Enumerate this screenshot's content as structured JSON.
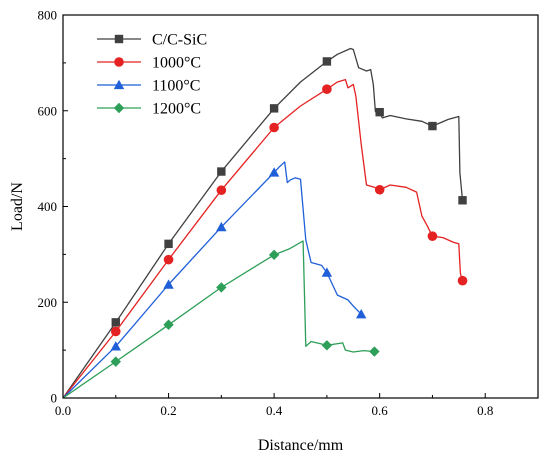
{
  "chart_data": {
    "type": "line",
    "title": "",
    "xlabel": "Distance/mm",
    "ylabel": "Load/N",
    "xlim": [
      0,
      0.9
    ],
    "ylim": [
      0,
      800
    ],
    "xticks": [
      0.0,
      0.2,
      0.4,
      0.6,
      0.8
    ],
    "xtick_labels": [
      "0.0",
      "0.2",
      "0.4",
      "0.6",
      "0.8"
    ],
    "yticks": [
      0,
      200,
      400,
      600,
      800
    ],
    "ytick_labels": [
      "0",
      "200",
      "400",
      "600",
      "800"
    ],
    "grid": false,
    "legend_position": "top-left",
    "series": [
      {
        "name": "C/C-SiC",
        "color": "#404040",
        "marker": "square",
        "points": [
          [
            0,
            0
          ],
          [
            0.1,
            158
          ],
          [
            0.2,
            322
          ],
          [
            0.3,
            473
          ],
          [
            0.4,
            605
          ],
          [
            0.45,
            660
          ],
          [
            0.5,
            703
          ],
          [
            0.52,
            718
          ],
          [
            0.545,
            730
          ],
          [
            0.55,
            728
          ],
          [
            0.56,
            690
          ],
          [
            0.575,
            683
          ],
          [
            0.583,
            686
          ],
          [
            0.588,
            655
          ],
          [
            0.592,
            598
          ],
          [
            0.6,
            597
          ],
          [
            0.605,
            585
          ],
          [
            0.62,
            590
          ],
          [
            0.65,
            583
          ],
          [
            0.68,
            578
          ],
          [
            0.7,
            568
          ],
          [
            0.73,
            582
          ],
          [
            0.75,
            588
          ],
          [
            0.752,
            470
          ],
          [
            0.757,
            413
          ]
        ],
        "markers": [
          [
            0.1,
            158
          ],
          [
            0.2,
            322
          ],
          [
            0.3,
            473
          ],
          [
            0.4,
            605
          ],
          [
            0.5,
            703
          ],
          [
            0.6,
            597
          ],
          [
            0.7,
            568
          ],
          [
            0.757,
            413
          ]
        ]
      },
      {
        "name": "1000°C",
        "color": "#e52222",
        "marker": "circle",
        "points": [
          [
            0,
            0
          ],
          [
            0.1,
            139
          ],
          [
            0.2,
            289
          ],
          [
            0.3,
            434
          ],
          [
            0.4,
            565
          ],
          [
            0.45,
            610
          ],
          [
            0.5,
            645
          ],
          [
            0.52,
            660
          ],
          [
            0.535,
            665
          ],
          [
            0.54,
            648
          ],
          [
            0.55,
            655
          ],
          [
            0.555,
            630
          ],
          [
            0.565,
            530
          ],
          [
            0.575,
            445
          ],
          [
            0.59,
            440
          ],
          [
            0.6,
            435
          ],
          [
            0.62,
            445
          ],
          [
            0.65,
            440
          ],
          [
            0.67,
            430
          ],
          [
            0.68,
            380
          ],
          [
            0.69,
            360
          ],
          [
            0.7,
            338
          ],
          [
            0.72,
            335
          ],
          [
            0.74,
            325
          ],
          [
            0.75,
            322
          ],
          [
            0.753,
            260
          ],
          [
            0.757,
            245
          ]
        ],
        "markers": [
          [
            0.1,
            139
          ],
          [
            0.2,
            289
          ],
          [
            0.3,
            434
          ],
          [
            0.4,
            565
          ],
          [
            0.5,
            645
          ],
          [
            0.6,
            435
          ],
          [
            0.7,
            338
          ],
          [
            0.757,
            245
          ]
        ]
      },
      {
        "name": "1100°C",
        "color": "#1f5fd8",
        "marker": "triangle",
        "points": [
          [
            0,
            0
          ],
          [
            0.1,
            108
          ],
          [
            0.2,
            237
          ],
          [
            0.3,
            357
          ],
          [
            0.4,
            471
          ],
          [
            0.41,
            483
          ],
          [
            0.42,
            493
          ],
          [
            0.425,
            450
          ],
          [
            0.43,
            455
          ],
          [
            0.44,
            460
          ],
          [
            0.45,
            457
          ],
          [
            0.46,
            330
          ],
          [
            0.47,
            283
          ],
          [
            0.49,
            277
          ],
          [
            0.5,
            262
          ],
          [
            0.52,
            215
          ],
          [
            0.54,
            205
          ],
          [
            0.55,
            192
          ],
          [
            0.565,
            175
          ]
        ],
        "markers": [
          [
            0.1,
            108
          ],
          [
            0.2,
            237
          ],
          [
            0.3,
            357
          ],
          [
            0.4,
            471
          ],
          [
            0.5,
            262
          ],
          [
            0.565,
            175
          ]
        ]
      },
      {
        "name": "1200°C",
        "color": "#2e9f58",
        "marker": "diamond",
        "points": [
          [
            0,
            0
          ],
          [
            0.1,
            76
          ],
          [
            0.2,
            153
          ],
          [
            0.3,
            231
          ],
          [
            0.4,
            299
          ],
          [
            0.43,
            312
          ],
          [
            0.45,
            325
          ],
          [
            0.455,
            328
          ],
          [
            0.46,
            108
          ],
          [
            0.47,
            118
          ],
          [
            0.5,
            110
          ],
          [
            0.53,
            115
          ],
          [
            0.535,
            100
          ],
          [
            0.55,
            96
          ],
          [
            0.57,
            99
          ],
          [
            0.59,
            97
          ]
        ],
        "markers": [
          [
            0.1,
            76
          ],
          [
            0.2,
            153
          ],
          [
            0.3,
            231
          ],
          [
            0.4,
            299
          ],
          [
            0.5,
            110
          ],
          [
            0.59,
            97
          ]
        ]
      }
    ]
  }
}
